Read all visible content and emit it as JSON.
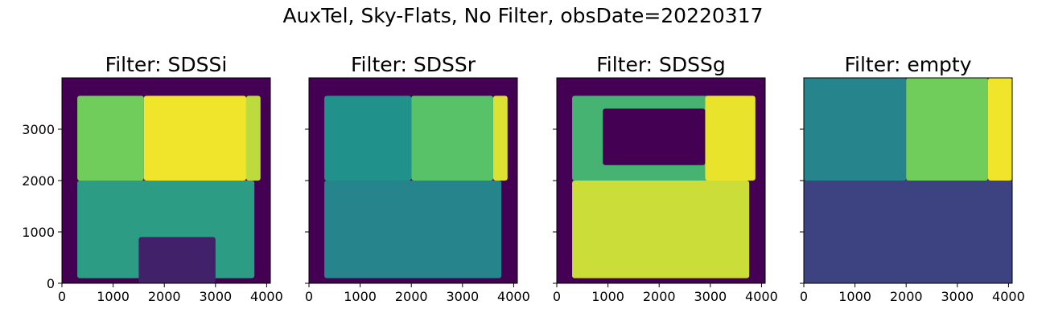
{
  "chart_data": {
    "type": "heatmap",
    "title": "AuxTel, Sky-Flats, No Filter, obsDate=20220317",
    "colormap": "viridis",
    "xlim": [
      0,
      4072
    ],
    "ylim": [
      0,
      4000
    ],
    "xticks": [
      0,
      1000,
      2000,
      3000,
      4000
    ],
    "yticks": [
      0,
      1000,
      2000,
      3000
    ],
    "panels": [
      {
        "title": "Filter: SDSSi",
        "background_level": 0.0,
        "patches": [
          {
            "x": [
              300,
              3760
            ],
            "y": [
              100,
              2000
            ],
            "level": 0.55
          },
          {
            "x": [
              1500,
              3000
            ],
            "y": [
              0,
              900
            ],
            "level": 0.1
          },
          {
            "x": [
              300,
              1600
            ],
            "y": [
              2000,
              3650
            ],
            "level": 0.78
          },
          {
            "x": [
              1600,
              3600
            ],
            "y": [
              2000,
              3650
            ],
            "level": 0.98
          },
          {
            "x": [
              3600,
              3880
            ],
            "y": [
              2000,
              3650
            ],
            "level": 0.9
          }
        ]
      },
      {
        "title": "Filter: SDSSr",
        "background_level": 0.0,
        "patches": [
          {
            "x": [
              300,
              3760
            ],
            "y": [
              100,
              2000
            ],
            "level": 0.45
          },
          {
            "x": [
              300,
              2000
            ],
            "y": [
              2000,
              3650
            ],
            "level": 0.5
          },
          {
            "x": [
              2000,
              3600
            ],
            "y": [
              2000,
              3650
            ],
            "level": 0.72
          },
          {
            "x": [
              3600,
              3880
            ],
            "y": [
              2000,
              3650
            ],
            "level": 0.95
          }
        ]
      },
      {
        "title": "Filter: SDSSg",
        "background_level": 0.0,
        "patches": [
          {
            "x": [
              300,
              3760
            ],
            "y": [
              100,
              2000
            ],
            "level": 0.92
          },
          {
            "x": [
              300,
              3760
            ],
            "y": [
              2000,
              3650
            ],
            "level": 0.65
          },
          {
            "x": [
              900,
              2900
            ],
            "y": [
              2300,
              3400
            ],
            "level": 0.0
          },
          {
            "x": [
              2900,
              3880
            ],
            "y": [
              2000,
              3650
            ],
            "level": 0.97
          }
        ]
      },
      {
        "title": "Filter: empty",
        "background_level": 0.15,
        "patches": [
          {
            "x": [
              0,
              2000
            ],
            "y": [
              2000,
              4000
            ],
            "level": 0.45
          },
          {
            "x": [
              2000,
              3600
            ],
            "y": [
              2000,
              4000
            ],
            "level": 0.78
          },
          {
            "x": [
              3600,
              4072
            ],
            "y": [
              2000,
              4000
            ],
            "level": 0.98
          },
          {
            "x": [
              0,
              4072
            ],
            "y": [
              0,
              2000
            ],
            "level": 0.2
          }
        ]
      }
    ]
  }
}
